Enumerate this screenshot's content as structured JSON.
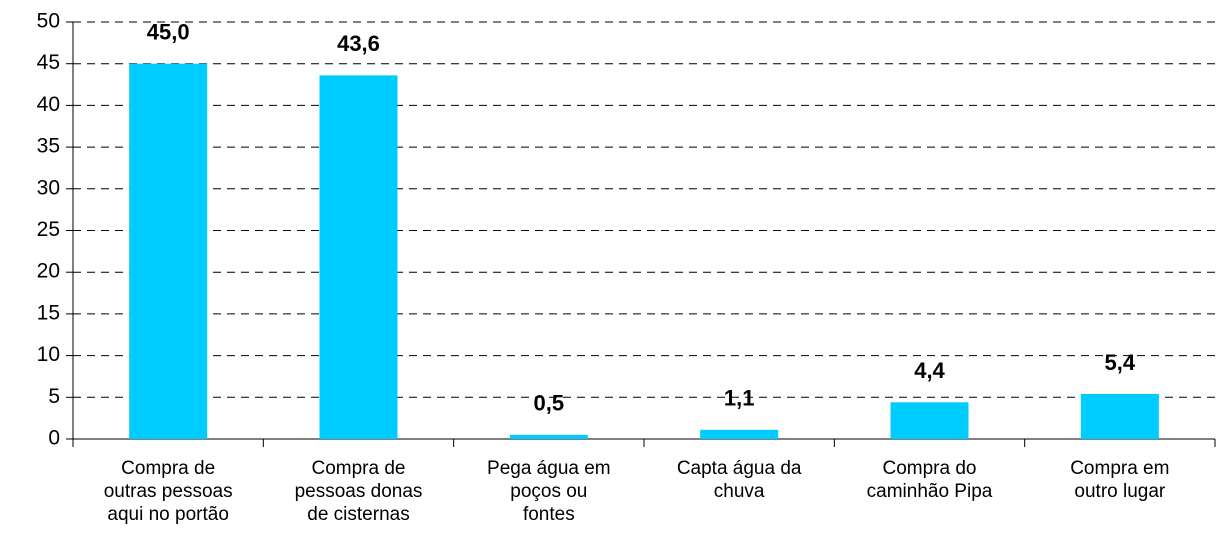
{
  "chart_data": {
    "type": "bar",
    "categories": [
      "Compra de\noutras pessoas\naqui no portão",
      "Compra de\npessoas donas\nde cisternas",
      "Pega água em\npoços ou\nfontes",
      "Capta água da\nchuva",
      "Compra do\ncaminhão Pipa",
      "Compra em\noutro lugar"
    ],
    "values": [
      45.0,
      43.6,
      0.5,
      1.1,
      4.4,
      5.4
    ],
    "value_labels": [
      "45,0",
      "43,6",
      "0,5",
      "1,1",
      "4,4",
      "5,4"
    ],
    "color": "#00ccff",
    "ylim": [
      0,
      50
    ],
    "yticks": [
      0,
      5,
      10,
      15,
      20,
      25,
      30,
      35,
      40,
      45,
      50
    ],
    "grid": true
  }
}
